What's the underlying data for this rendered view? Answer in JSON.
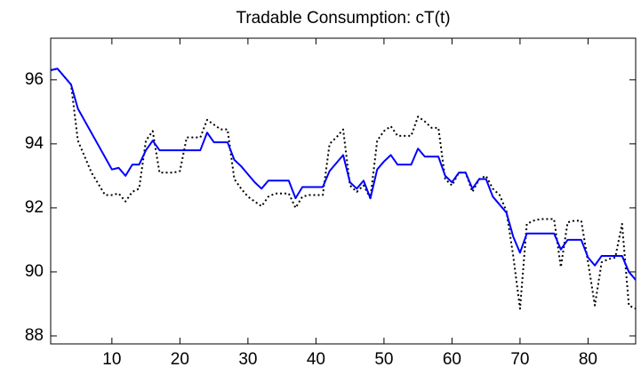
{
  "chart_data": {
    "type": "line",
    "title": "Tradable Consumption: cT(t)",
    "x": [
      1,
      2,
      3,
      4,
      5,
      6,
      7,
      8,
      9,
      10,
      11,
      12,
      13,
      14,
      15,
      16,
      17,
      18,
      19,
      20,
      21,
      22,
      23,
      24,
      25,
      26,
      27,
      28,
      29,
      30,
      31,
      32,
      33,
      34,
      35,
      36,
      37,
      38,
      39,
      40,
      41,
      42,
      43,
      44,
      45,
      46,
      47,
      48,
      49,
      50,
      51,
      52,
      53,
      54,
      55,
      56,
      57,
      58,
      59,
      60,
      61,
      62,
      63,
      64,
      65,
      66,
      67,
      68,
      69,
      70,
      71,
      72,
      73,
      74,
      75,
      76,
      77,
      78,
      79,
      80,
      81,
      82,
      83,
      84,
      85,
      86,
      87
    ],
    "series": [
      {
        "color": "#0000ff",
        "linestyle": "solid",
        "values": [
          96.3,
          96.35,
          96.1,
          95.85,
          95.1,
          94.72,
          94.34,
          93.96,
          93.58,
          93.2,
          93.25,
          93.0,
          93.35,
          93.35,
          93.8,
          94.1,
          93.8,
          93.8,
          93.8,
          93.8,
          93.8,
          93.8,
          93.8,
          94.35,
          94.05,
          94.05,
          94.05,
          93.5,
          93.3,
          93.05,
          92.8,
          92.6,
          92.85,
          92.85,
          92.85,
          92.85,
          92.3,
          92.65,
          92.65,
          92.65,
          92.65,
          93.15,
          93.4,
          93.65,
          92.8,
          92.6,
          92.85,
          92.3,
          93.2,
          93.45,
          93.65,
          93.35,
          93.35,
          93.35,
          93.85,
          93.6,
          93.6,
          93.6,
          93.0,
          92.8,
          93.1,
          93.1,
          92.6,
          92.9,
          92.9,
          92.35,
          92.1,
          91.85,
          91.1,
          90.6,
          91.2,
          91.2,
          91.2,
          91.2,
          91.2,
          90.7,
          91.0,
          91.0,
          91.0,
          90.45,
          90.2,
          90.5,
          90.5,
          90.5,
          90.5,
          90.0,
          89.75
        ]
      },
      {
        "color": "#000000",
        "linestyle": "dotted",
        "values": [
          96.3,
          96.35,
          96.1,
          95.85,
          94.1,
          93.6,
          93.1,
          92.75,
          92.4,
          92.4,
          92.45,
          92.2,
          92.5,
          92.6,
          94.1,
          94.4,
          93.1,
          93.1,
          93.1,
          93.15,
          94.2,
          94.2,
          94.2,
          94.75,
          94.6,
          94.45,
          94.45,
          92.9,
          92.6,
          92.35,
          92.2,
          92.05,
          92.35,
          92.45,
          92.45,
          92.45,
          92.0,
          92.35,
          92.4,
          92.4,
          92.4,
          94.0,
          94.2,
          94.45,
          92.7,
          92.5,
          92.7,
          92.3,
          94.1,
          94.4,
          94.55,
          94.25,
          94.25,
          94.25,
          94.85,
          94.7,
          94.5,
          94.5,
          92.9,
          92.7,
          93.1,
          93.1,
          92.5,
          92.9,
          93.0,
          92.6,
          92.4,
          91.9,
          90.5,
          88.85,
          91.5,
          91.6,
          91.65,
          91.65,
          91.65,
          90.15,
          91.55,
          91.6,
          91.6,
          90.3,
          88.95,
          90.3,
          90.4,
          90.45,
          91.5,
          88.95,
          88.85
        ]
      }
    ],
    "xlim": [
      1,
      87
    ],
    "xticks": [
      10,
      20,
      30,
      40,
      50,
      60,
      70,
      80
    ],
    "ylim": [
      87.75,
      97.3
    ],
    "yticks": [
      88,
      90,
      92,
      94,
      96
    ],
    "grid": false
  }
}
